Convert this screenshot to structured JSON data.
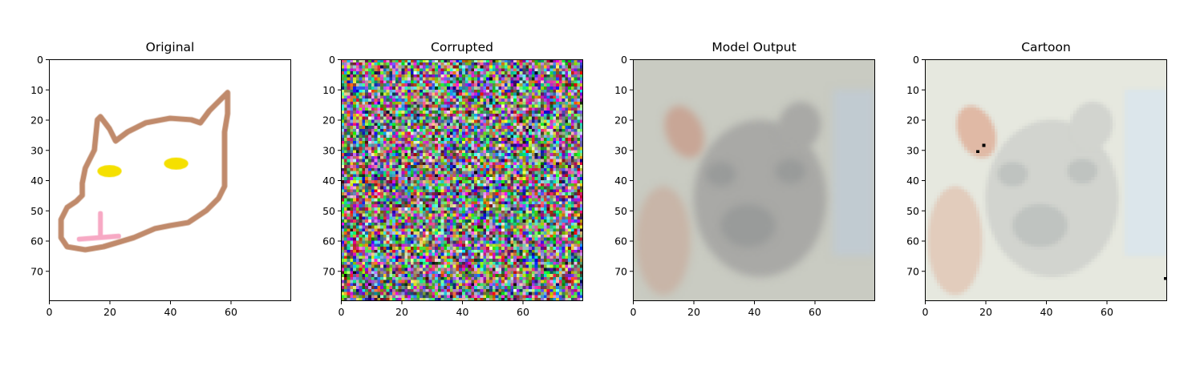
{
  "figure": {
    "background": "#ffffff"
  },
  "chart_data": [
    {
      "type": "image",
      "title": "Original",
      "xlim": [
        0,
        80
      ],
      "ylim": [
        80,
        0
      ],
      "xticks": [
        0,
        20,
        40,
        60
      ],
      "yticks": [
        0,
        10,
        20,
        30,
        40,
        50,
        60,
        70
      ],
      "content": "hand-drawn cartoon cat face: brown outline, two yellow eyes, pink nose/mouth on white",
      "colors": {
        "outline": "#c08a6b",
        "eyes": "#f5e000",
        "mouth": "#f7a9c4",
        "background": "#ffffff"
      }
    },
    {
      "type": "image",
      "title": "Corrupted",
      "xlim": [
        0,
        80
      ],
      "ylim": [
        80,
        0
      ],
      "xticks": [
        0,
        20,
        40,
        60
      ],
      "yticks": [
        0,
        10,
        20,
        30,
        40,
        50,
        60,
        70
      ],
      "content": "random multicolor pixel noise"
    },
    {
      "type": "image",
      "title": "Model Output",
      "xlim": [
        0,
        80
      ],
      "ylim": [
        80,
        0
      ],
      "xticks": [
        0,
        20,
        40,
        60
      ],
      "yticks": [
        0,
        10,
        20,
        30,
        40,
        50,
        60,
        70
      ],
      "content": "blurry washed-out photo of a dog face",
      "colors": {
        "base": "#c9cbc2",
        "fur": "#a9a9a6",
        "ear": "#c8a696",
        "shadow": "#999b9a",
        "sky": "#bfcad4"
      }
    },
    {
      "type": "image",
      "title": "Cartoon",
      "xlim": [
        0,
        80
      ],
      "ylim": [
        80,
        0
      ],
      "xticks": [
        0,
        20,
        40,
        60
      ],
      "yticks": [
        0,
        10,
        20,
        30,
        40,
        50,
        60,
        70
      ],
      "content": "pale, cartoonish, slightly pixelated dog face",
      "colors": {
        "base": "#e6e8df",
        "fur": "#d2d4cf",
        "ear": "#e0b9a5",
        "shadow": "#bfc3c0",
        "sky": "#d9e5ee"
      }
    }
  ]
}
